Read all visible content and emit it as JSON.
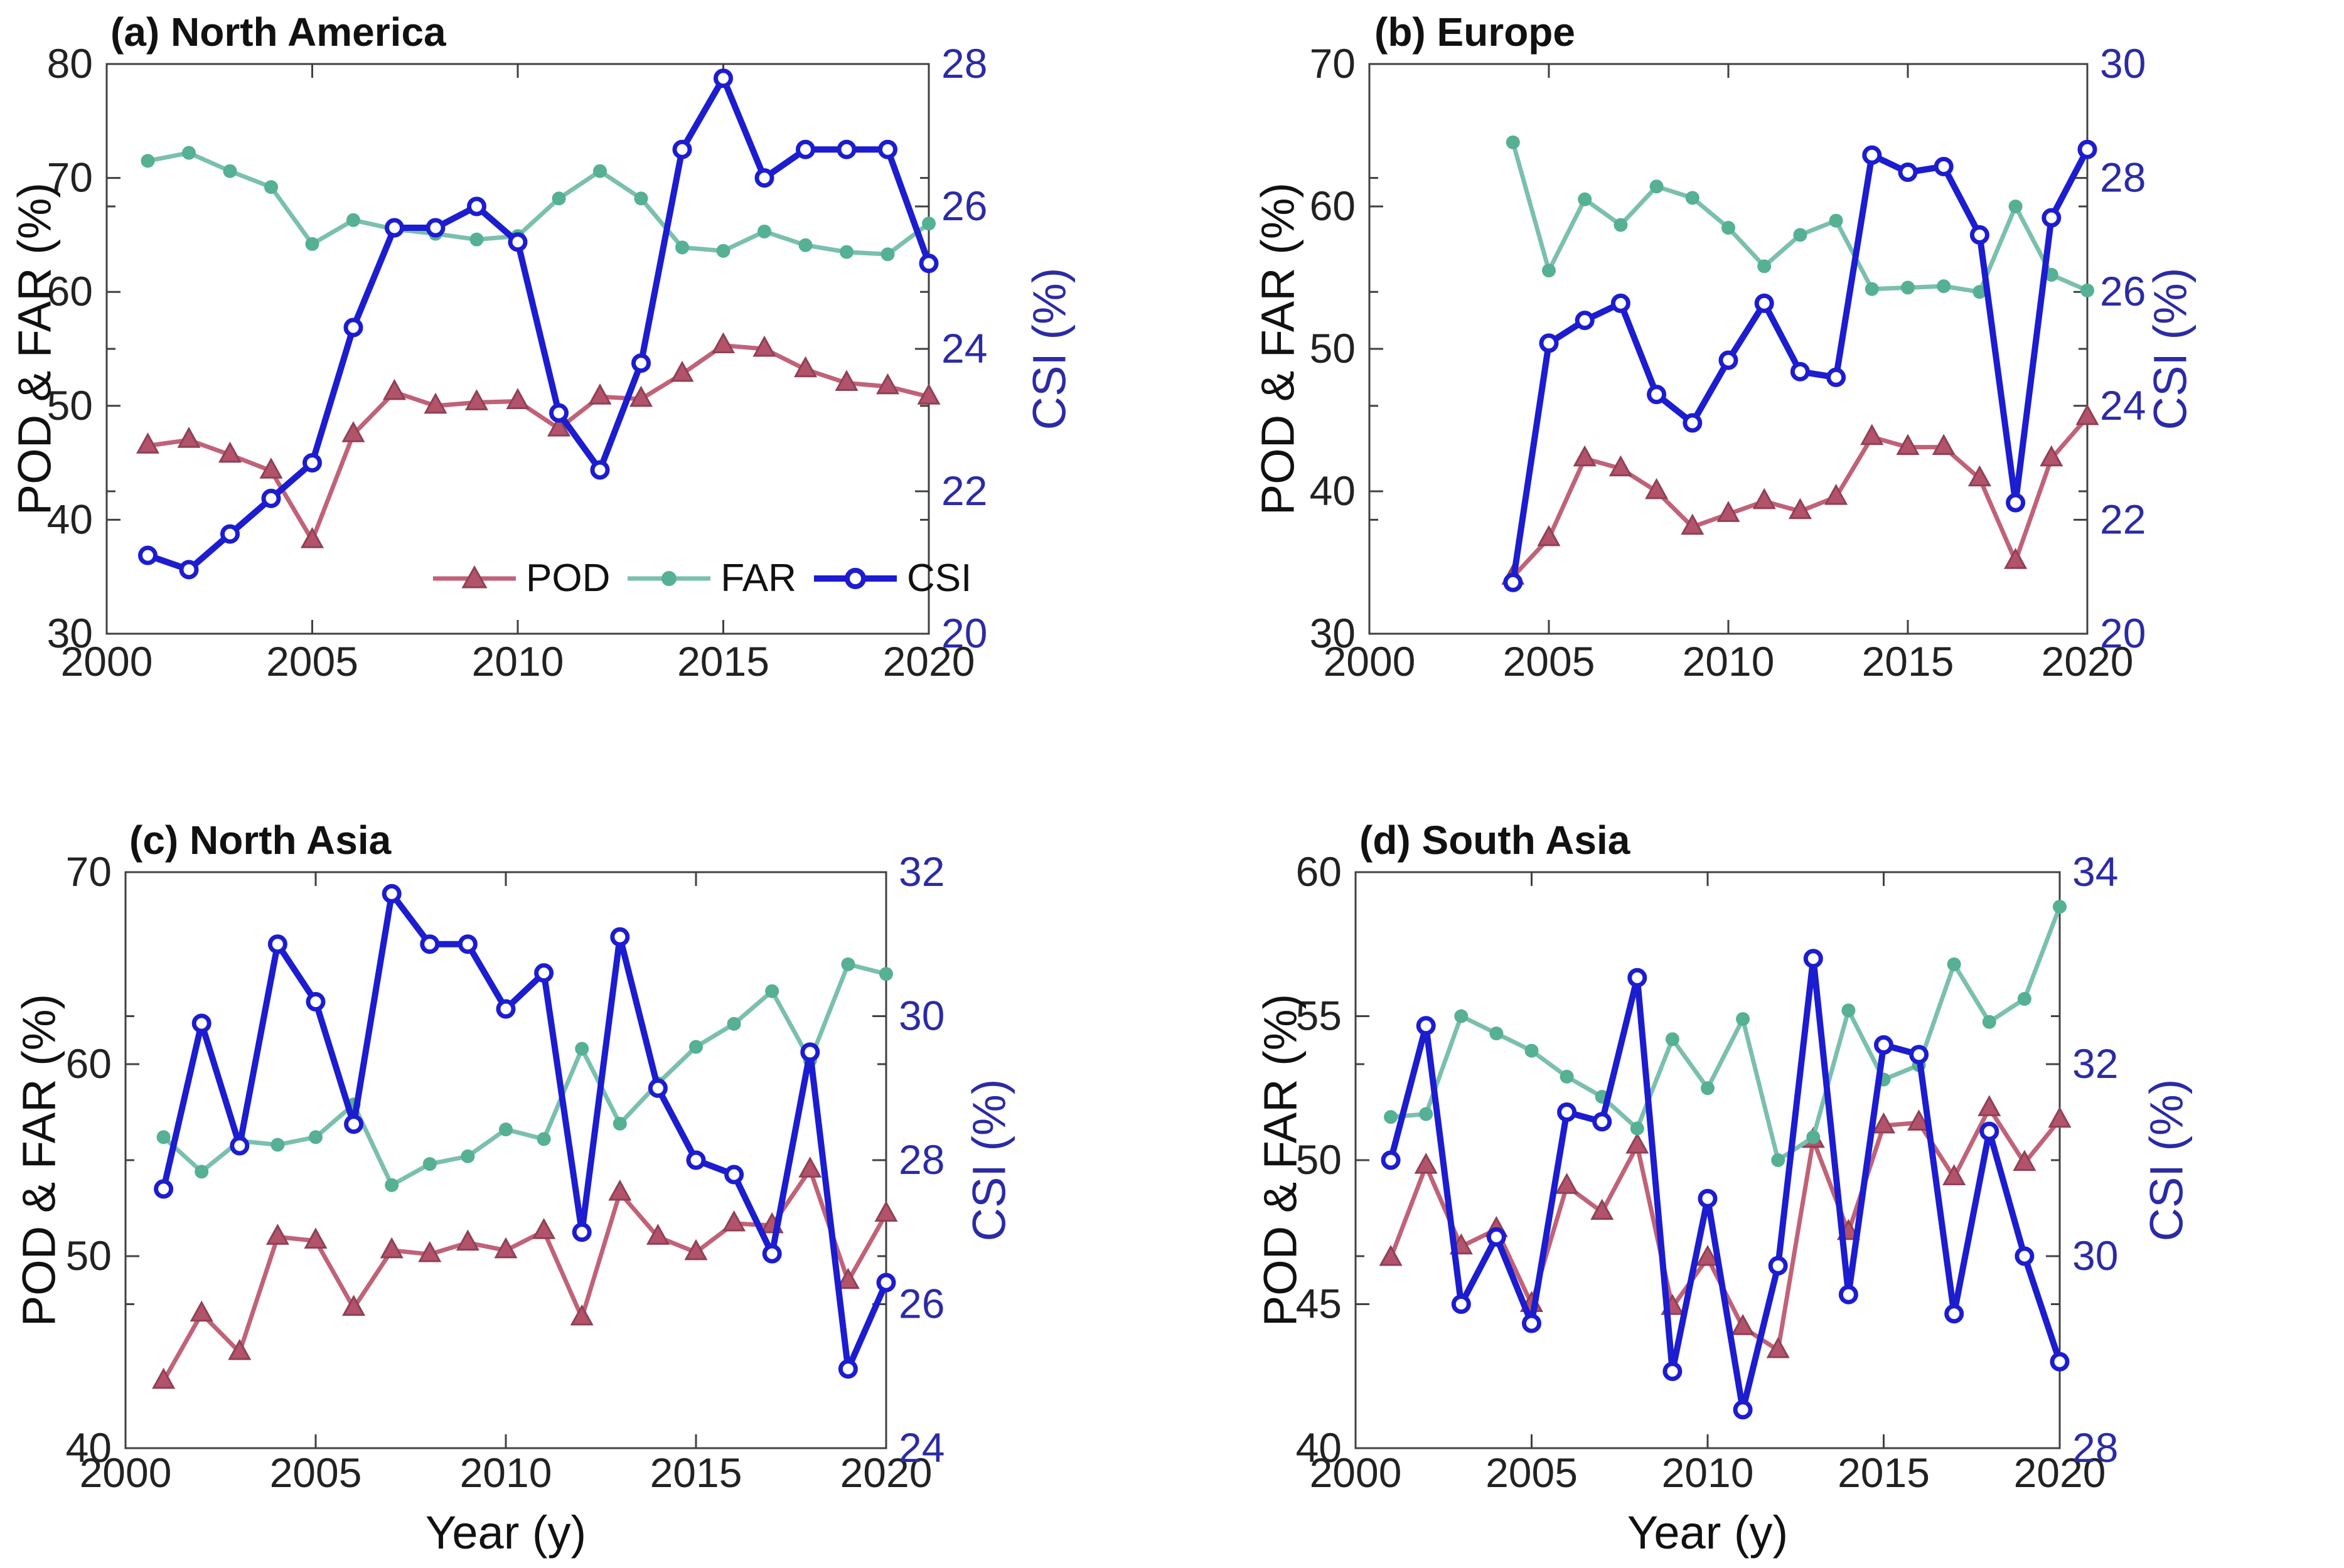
{
  "colors": {
    "pod_line": "#c06278",
    "pod_marker_fill": "#b2526b",
    "pod_marker_edge": "#8f4055",
    "far_line": "#7bbfae",
    "far_marker": "#55b094",
    "csi_line": "#1c1cd0",
    "right_axis_text": "#2b2ba6",
    "axis_line": "#404040",
    "tick_text": "#222222"
  },
  "chart_data": [
    {
      "type": "line",
      "title": "(a) North America",
      "left_axis": {
        "label": "POD & FAR (%)",
        "min": 30,
        "max": 80,
        "step": 10
      },
      "right_axis": {
        "label": "CSI (%)",
        "min": 20,
        "max": 28,
        "step": 2
      },
      "x_axis": {
        "label": "",
        "min": 2000,
        "max": 2020,
        "step": 5
      },
      "years": [
        2001,
        2002,
        2003,
        2004,
        2005,
        2006,
        2007,
        2008,
        2009,
        2010,
        2011,
        2012,
        2013,
        2014,
        2015,
        2016,
        2017,
        2018,
        2019,
        2020
      ],
      "series": [
        {
          "name": "POD",
          "axis": "left",
          "values": [
            46.5,
            47.0,
            45.7,
            44.3,
            38.2,
            47.5,
            51.2,
            50.0,
            50.3,
            50.4,
            48.0,
            50.8,
            50.6,
            52.8,
            55.3,
            55.0,
            53.2,
            52.0,
            51.7,
            50.8
          ]
        },
        {
          "name": "FAR",
          "axis": "left",
          "values": [
            71.5,
            72.2,
            70.6,
            69.2,
            64.2,
            66.3,
            65.5,
            65.1,
            64.6,
            64.9,
            68.2,
            70.6,
            68.2,
            63.9,
            63.6,
            65.3,
            64.1,
            63.5,
            63.3,
            66.0
          ]
        },
        {
          "name": "CSI",
          "axis": "right",
          "values": [
            21.1,
            20.9,
            21.4,
            21.9,
            22.4,
            24.3,
            25.7,
            25.7,
            26.0,
            25.5,
            23.1,
            22.3,
            23.8,
            26.8,
            27.8,
            26.4,
            26.8,
            26.8,
            26.8,
            25.2
          ]
        }
      ],
      "legend_position": "inside-bottom-right"
    },
    {
      "type": "line",
      "title": "(b) Europe",
      "left_axis": {
        "label": "POD & FAR (%)",
        "min": 30,
        "max": 70,
        "step": 10
      },
      "right_axis": {
        "label": "CSI (%)",
        "min": 20,
        "max": 30,
        "step": 2
      },
      "x_axis": {
        "label": "",
        "min": 2000,
        "max": 2020,
        "step": 5
      },
      "years": [
        2004,
        2005,
        2006,
        2007,
        2008,
        2009,
        2010,
        2011,
        2012,
        2013,
        2014,
        2015,
        2016,
        2017,
        2018,
        2019,
        2020
      ],
      "series": [
        {
          "name": "POD",
          "axis": "left",
          "values": [
            34.0,
            36.7,
            42.3,
            41.6,
            40.0,
            37.5,
            38.4,
            39.3,
            38.6,
            39.6,
            43.8,
            43.1,
            43.1,
            40.9,
            35.1,
            42.3,
            45.2
          ]
        },
        {
          "name": "FAR",
          "axis": "left",
          "values": [
            64.5,
            55.5,
            60.5,
            58.7,
            61.4,
            60.6,
            58.5,
            55.8,
            58.0,
            59.0,
            54.2,
            54.3,
            54.4,
            54.0,
            60.0,
            55.2,
            54.1
          ]
        },
        {
          "name": "CSI",
          "axis": "right",
          "values": [
            20.9,
            25.1,
            25.5,
            25.8,
            24.2,
            23.7,
            24.8,
            25.8,
            24.6,
            24.5,
            28.4,
            28.1,
            28.2,
            27.0,
            22.3,
            27.3,
            28.5
          ]
        }
      ]
    },
    {
      "type": "line",
      "title": "(c) North Asia",
      "left_axis": {
        "label": "POD & FAR (%)",
        "min": 40,
        "max": 70,
        "step": 10
      },
      "right_axis": {
        "label": "CSI (%)",
        "min": 24,
        "max": 32,
        "step": 2
      },
      "x_axis": {
        "label": "Year (y)",
        "min": 2000,
        "max": 2020,
        "step": 5
      },
      "years": [
        2001,
        2002,
        2003,
        2004,
        2005,
        2006,
        2007,
        2008,
        2009,
        2010,
        2011,
        2012,
        2013,
        2014,
        2015,
        2016,
        2017,
        2018,
        2019,
        2020
      ],
      "series": [
        {
          "name": "POD",
          "axis": "left",
          "values": [
            43.5,
            47.0,
            45.0,
            51.0,
            50.8,
            47.3,
            50.3,
            50.1,
            50.7,
            50.3,
            51.3,
            46.8,
            53.3,
            51.0,
            50.2,
            51.7,
            51.6,
            54.5,
            48.7,
            52.2
          ]
        },
        {
          "name": "FAR",
          "axis": "left",
          "values": [
            56.2,
            54.4,
            56.0,
            55.8,
            56.2,
            57.9,
            53.7,
            54.8,
            55.2,
            56.6,
            56.1,
            60.8,
            56.9,
            59.0,
            60.9,
            62.1,
            63.8,
            60.2,
            65.2,
            64.7
          ]
        },
        {
          "name": "CSI",
          "axis": "right",
          "values": [
            27.6,
            29.9,
            28.2,
            31.0,
            30.2,
            28.5,
            31.7,
            31.0,
            31.0,
            30.1,
            30.6,
            27.0,
            31.1,
            29.0,
            28.0,
            27.8,
            26.7,
            29.5,
            25.1,
            26.3
          ]
        }
      ]
    },
    {
      "type": "line",
      "title": "(d) South Asia",
      "left_axis": {
        "label": "POD & FAR (%)",
        "min": 40,
        "max": 60,
        "step": 5
      },
      "right_axis": {
        "label": "CSI (%)",
        "min": 28,
        "max": 34,
        "step": 2
      },
      "x_axis": {
        "label": "Year (y)",
        "min": 2000,
        "max": 2020,
        "step": 5
      },
      "years": [
        2001,
        2002,
        2003,
        2004,
        2005,
        2006,
        2007,
        2008,
        2009,
        2010,
        2011,
        2012,
        2013,
        2014,
        2015,
        2016,
        2017,
        2018,
        2019,
        2020
      ],
      "series": [
        {
          "name": "POD",
          "axis": "left",
          "values": [
            46.6,
            49.8,
            47.0,
            47.6,
            45.0,
            49.1,
            48.2,
            50.5,
            44.9,
            46.6,
            44.2,
            43.4,
            50.7,
            47.5,
            51.2,
            51.3,
            49.4,
            51.8,
            49.9,
            51.4
          ]
        },
        {
          "name": "FAR",
          "axis": "left",
          "values": [
            51.5,
            51.6,
            55.0,
            54.4,
            53.8,
            52.9,
            52.2,
            51.1,
            54.2,
            52.5,
            54.9,
            50.0,
            50.8,
            55.2,
            52.8,
            53.3,
            56.8,
            54.8,
            55.6,
            58.8
          ]
        },
        {
          "name": "CSI",
          "axis": "right",
          "values": [
            31.0,
            32.4,
            29.5,
            30.2,
            29.3,
            31.5,
            31.4,
            32.9,
            28.8,
            30.6,
            28.4,
            29.9,
            33.1,
            29.6,
            32.2,
            32.1,
            29.4,
            31.3,
            30.0,
            28.9
          ]
        }
      ]
    }
  ]
}
